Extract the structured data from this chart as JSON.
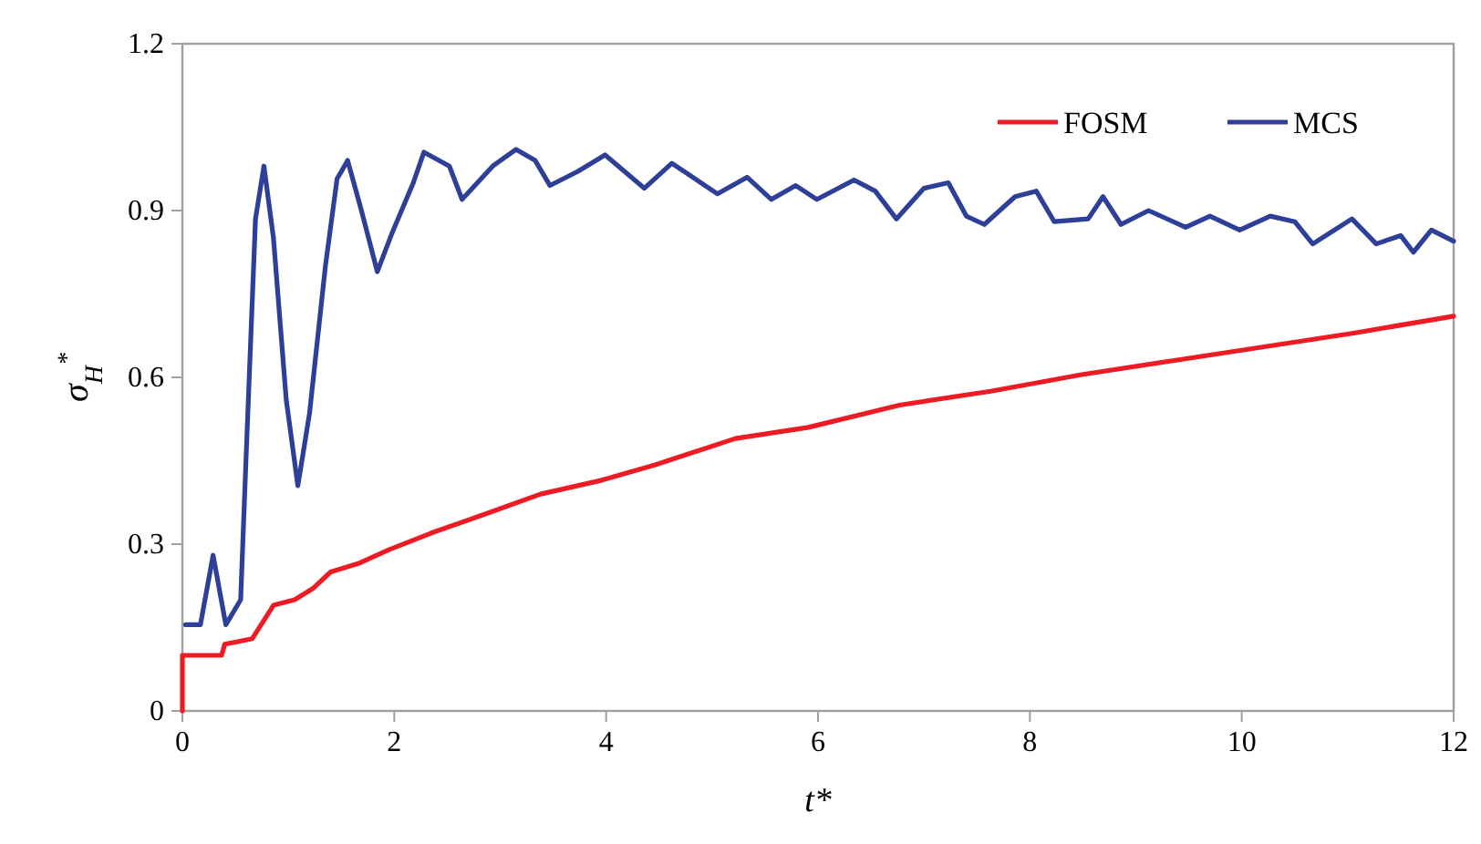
{
  "chart_data": {
    "type": "line",
    "xlabel": "t*",
    "ylabel": "σ$_{H}$$^{*}$",
    "xlim": [
      0,
      12
    ],
    "xticks": [
      0,
      2,
      4,
      6,
      8,
      10,
      12
    ],
    "ylim": [
      0,
      1.2
    ],
    "yticks": [
      0,
      0.3,
      0.6,
      0.9,
      1.2
    ],
    "grid": false,
    "legend": "top right",
    "marker": "none",
    "line_style": "solid",
    "series": [
      {
        "name": "FOSM",
        "color": "#ed1c24",
        "x": [
          0,
          0,
          0.37,
          0.4,
          0.66,
          0.86,
          1.06,
          1.23,
          1.4,
          1.66,
          1.95,
          2.35,
          2.87,
          3.38,
          3.96,
          4.47,
          5.22,
          5.91,
          6.77,
          7.63,
          8.49,
          9.35,
          10.21,
          11.07,
          12
        ],
        "values": [
          0,
          0.1,
          0.1,
          0.12,
          0.13,
          0.19,
          0.2,
          0.22,
          0.25,
          0.265,
          0.29,
          0.32,
          0.355,
          0.39,
          0.415,
          0.443,
          0.49,
          0.51,
          0.55,
          0.575,
          0.605,
          0.63,
          0.655,
          0.68,
          0.71
        ]
      },
      {
        "name": "MCS",
        "color": "#2e3f98",
        "x": [
          0.03,
          0.17,
          0.29,
          0.41,
          0.55,
          0.6,
          0.69,
          0.77,
          0.86,
          0.98,
          1.09,
          1.2,
          1.35,
          1.46,
          1.56,
          1.69,
          1.84,
          1.98,
          2.18,
          2.28,
          2.52,
          2.64,
          2.93,
          3.15,
          3.33,
          3.47,
          3.73,
          3.99,
          4.36,
          4.62,
          5.05,
          5.33,
          5.56,
          5.79,
          5.99,
          6.34,
          6.54,
          6.74,
          7.0,
          7.23,
          7.4,
          7.57,
          7.86,
          8.06,
          8.23,
          8.55,
          8.69,
          8.86,
          9.12,
          9.47,
          9.7,
          9.98,
          10.27,
          10.5,
          10.67,
          11.04,
          11.27,
          11.5,
          11.62,
          11.79,
          12
        ],
        "values": [
          0.155,
          0.155,
          0.28,
          0.155,
          0.2,
          0.45,
          0.885,
          0.98,
          0.85,
          0.56,
          0.405,
          0.535,
          0.8,
          0.957,
          0.99,
          0.9,
          0.79,
          0.86,
          0.95,
          1.005,
          0.98,
          0.92,
          0.98,
          1.01,
          0.99,
          0.945,
          0.97,
          1.0,
          0.94,
          0.985,
          0.93,
          0.96,
          0.92,
          0.945,
          0.92,
          0.955,
          0.935,
          0.885,
          0.94,
          0.95,
          0.89,
          0.875,
          0.925,
          0.935,
          0.88,
          0.885,
          0.925,
          0.875,
          0.9,
          0.87,
          0.89,
          0.865,
          0.89,
          0.88,
          0.84,
          0.885,
          0.84,
          0.855,
          0.825,
          0.865,
          0.845
        ]
      }
    ]
  }
}
